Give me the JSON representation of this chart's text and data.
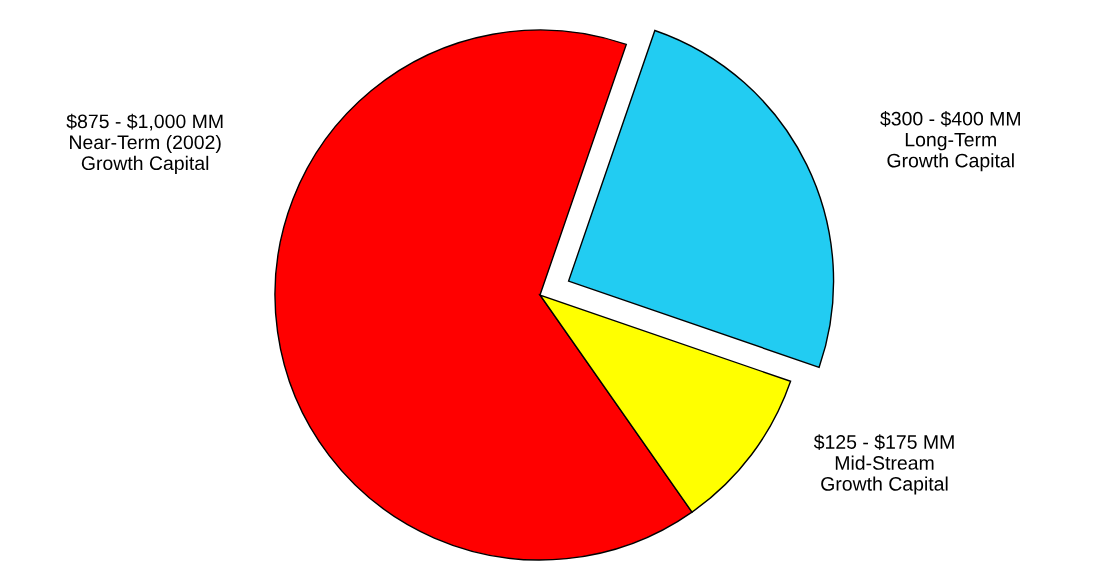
{
  "chart_data": {
    "type": "pie",
    "categories": [
      "$300 - $400 MM\nLong-Term\nGrowth Capital",
      "$875 - $1,000 MM\nNear-Term (2002)\nGrowth Capital",
      "$125 - $175 MM\nMid-Stream\nGrowth Capital"
    ],
    "values": [
      25,
      65,
      10
    ],
    "colors": [
      "#22ccf2",
      "#ff0000",
      "#ffff00"
    ],
    "legend": false
  }
}
